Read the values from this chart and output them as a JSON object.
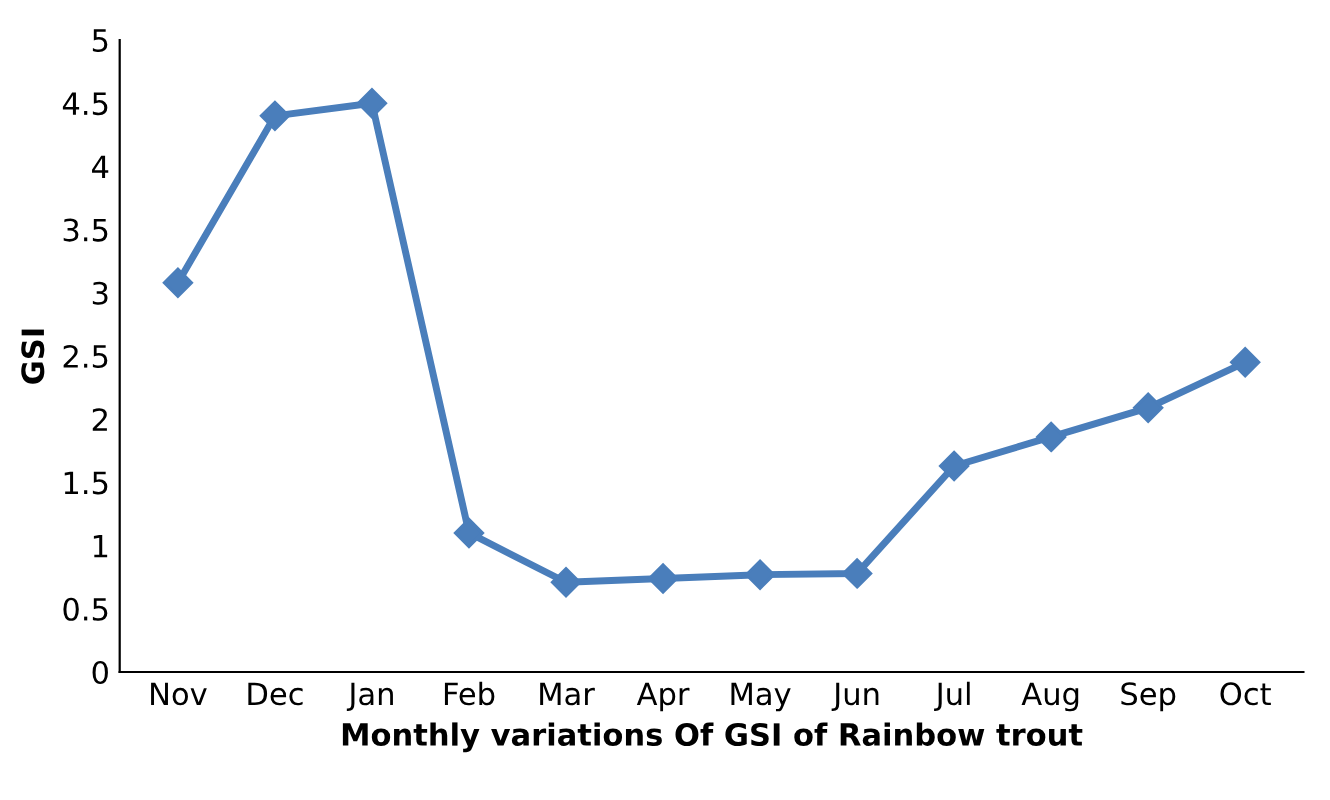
{
  "chart_data": {
    "type": "line",
    "xlabel": "Monthly variations Of GSI of Rainbow trout",
    "ylabel": "GSI",
    "categories": [
      "Nov",
      "Dec",
      "Jan",
      "Feb",
      "Mar",
      "Apr",
      "May",
      "Jun",
      "Jul",
      "Aug",
      "Sep",
      "Oct"
    ],
    "series": [
      {
        "color": "#4a7ebb",
        "values": [
          3.08,
          4.4,
          4.5,
          1.1,
          0.71,
          0.74,
          0.77,
          0.78,
          1.63,
          1.86,
          2.09,
          2.45
        ]
      }
    ],
    "ylim": [
      0,
      5
    ],
    "yticks": [
      0,
      0.5,
      1,
      1.5,
      2,
      2.5,
      3,
      3.5,
      4,
      4.5,
      5
    ],
    "grid": false,
    "marker": "diamond",
    "line_style": "solid"
  }
}
